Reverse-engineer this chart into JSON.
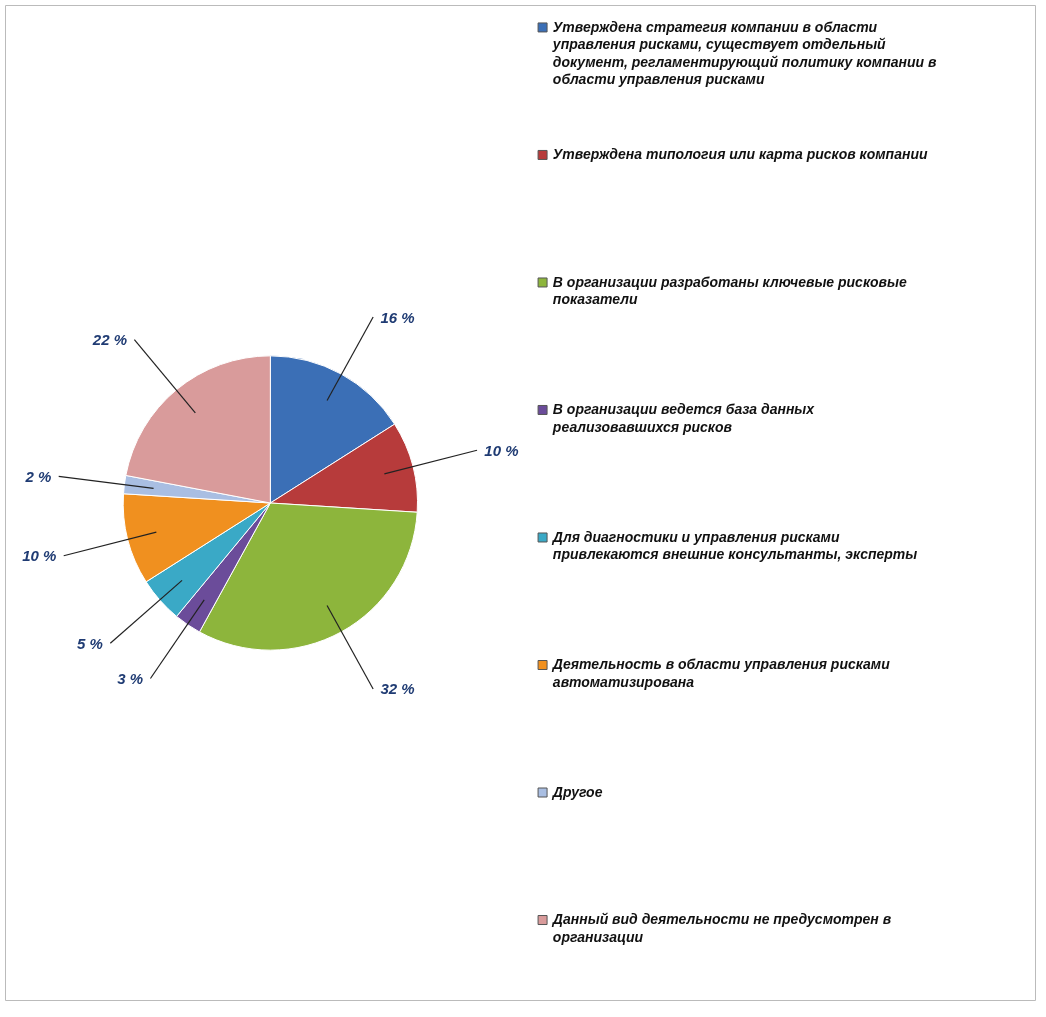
{
  "chart_data": {
    "type": "pie",
    "categories": [
      "Утверждена стратегия компании в области управления рисками, существует отдельный документ, регламентирующий политику компании в области управления рисками",
      "Утверждена типология или карта рисков компании",
      "В организации разработаны ключевые рисковые показатели",
      "В организации ведется база данных реализовавшихся рисков",
      "Для диагностики и управления рисками привлекаются внешние консультанты, эксперты",
      "Деятельность в области управления рисками автоматизирована",
      "Другое",
      "Данный вид деятельности не предусмотрен в организации"
    ],
    "values": [
      16,
      10,
      32,
      3,
      5,
      10,
      2,
      22
    ],
    "value_labels": [
      "16 %",
      "10 %",
      "32 %",
      "3 %",
      "5 %",
      "10 %",
      "2 %",
      "22 %"
    ],
    "colors": [
      "#3b6fb6",
      "#b73b3b",
      "#8db53c",
      "#6b4c9a",
      "#3aa9c6",
      "#f0901f",
      "#a9bee2",
      "#d99b9b"
    ],
    "legend": "right"
  }
}
